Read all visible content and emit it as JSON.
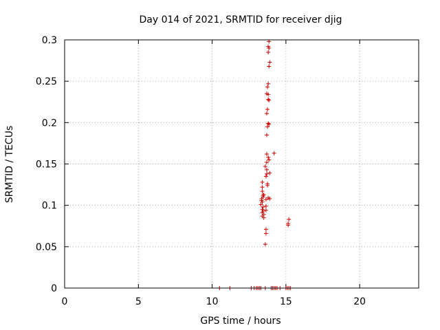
{
  "chart_data": {
    "type": "scatter",
    "title": "Day 014 of 2021, SRMTID for receiver djig",
    "xlabel": "GPS time / hours",
    "ylabel": "SRMTID / TECUs",
    "xlim": [
      0,
      24
    ],
    "ylim": [
      0,
      0.3
    ],
    "xticks": [
      0,
      5,
      10,
      15,
      20
    ],
    "xtick_labels": [
      "0",
      "5",
      "10",
      "15",
      "20"
    ],
    "yticks": [
      0,
      0.05,
      0.1,
      0.15,
      0.2,
      0.25,
      0.3
    ],
    "ytick_labels": [
      "0",
      "0.05",
      "0.1",
      "0.15",
      "0.2",
      "0.25",
      "0.3"
    ],
    "grid": true,
    "marker": "+",
    "colors": {
      "marker": "#cc0000",
      "grid": "#a0a0a0",
      "axis": "#000000"
    },
    "series": [
      {
        "points": [
          [
            10.5,
            0
          ],
          [
            11.2,
            0
          ],
          [
            12.65,
            0
          ],
          [
            12.85,
            0
          ],
          [
            13.0,
            0
          ],
          [
            13.1,
            0
          ],
          [
            13.2,
            0
          ],
          [
            13.3,
            0
          ],
          [
            13.6,
            0
          ],
          [
            14.0,
            0
          ],
          [
            14.1,
            0
          ],
          [
            14.2,
            0
          ],
          [
            14.3,
            0
          ],
          [
            14.4,
            0
          ],
          [
            14.6,
            0
          ],
          [
            15.0,
            0
          ],
          [
            15.1,
            0
          ],
          [
            15.2,
            0
          ],
          [
            15.3,
            0
          ],
          [
            13.4,
            0.128
          ],
          [
            13.4,
            0.122
          ],
          [
            13.4,
            0.117
          ],
          [
            13.45,
            0.112
          ],
          [
            13.35,
            0.108
          ],
          [
            13.35,
            0.106
          ],
          [
            13.4,
            0.104
          ],
          [
            13.3,
            0.101
          ],
          [
            13.45,
            0.098
          ],
          [
            13.4,
            0.095
          ],
          [
            13.45,
            0.093
          ],
          [
            13.4,
            0.091
          ],
          [
            13.5,
            0.089
          ],
          [
            13.4,
            0.087
          ],
          [
            13.5,
            0.085
          ],
          [
            13.45,
            0.11
          ],
          [
            13.5,
            0.113
          ],
          [
            13.6,
            0.147
          ],
          [
            13.65,
            0.135
          ],
          [
            13.7,
            0.138
          ],
          [
            13.7,
            0.152
          ],
          [
            13.7,
            0.162
          ],
          [
            13.75,
            0.126
          ],
          [
            13.75,
            0.124
          ],
          [
            13.65,
            0.107
          ],
          [
            13.65,
            0.099
          ],
          [
            13.65,
            0.094
          ],
          [
            13.65,
            0.071
          ],
          [
            13.65,
            0.066
          ],
          [
            13.6,
            0.053
          ],
          [
            13.7,
            0.143
          ],
          [
            13.8,
            0.109
          ],
          [
            13.9,
            0.108
          ],
          [
            13.8,
            0.158
          ],
          [
            13.85,
            0.155
          ],
          [
            13.9,
            0.139
          ],
          [
            14.2,
            0.163
          ],
          [
            13.7,
            0.185
          ],
          [
            13.75,
            0.195
          ],
          [
            13.8,
            0.199
          ],
          [
            13.85,
            0.198
          ],
          [
            13.7,
            0.211
          ],
          [
            13.75,
            0.216
          ],
          [
            13.7,
            0.235
          ],
          [
            13.8,
            0.234
          ],
          [
            13.8,
            0.228
          ],
          [
            13.85,
            0.227
          ],
          [
            13.75,
            0.243
          ],
          [
            13.8,
            0.247
          ],
          [
            13.85,
            0.268
          ],
          [
            13.9,
            0.273
          ],
          [
            13.8,
            0.285
          ],
          [
            13.85,
            0.29
          ],
          [
            13.8,
            0.292
          ],
          [
            13.85,
            0.298
          ],
          [
            15.2,
            0.083
          ],
          [
            15.15,
            0.078
          ],
          [
            15.15,
            0.076
          ]
        ]
      }
    ]
  }
}
